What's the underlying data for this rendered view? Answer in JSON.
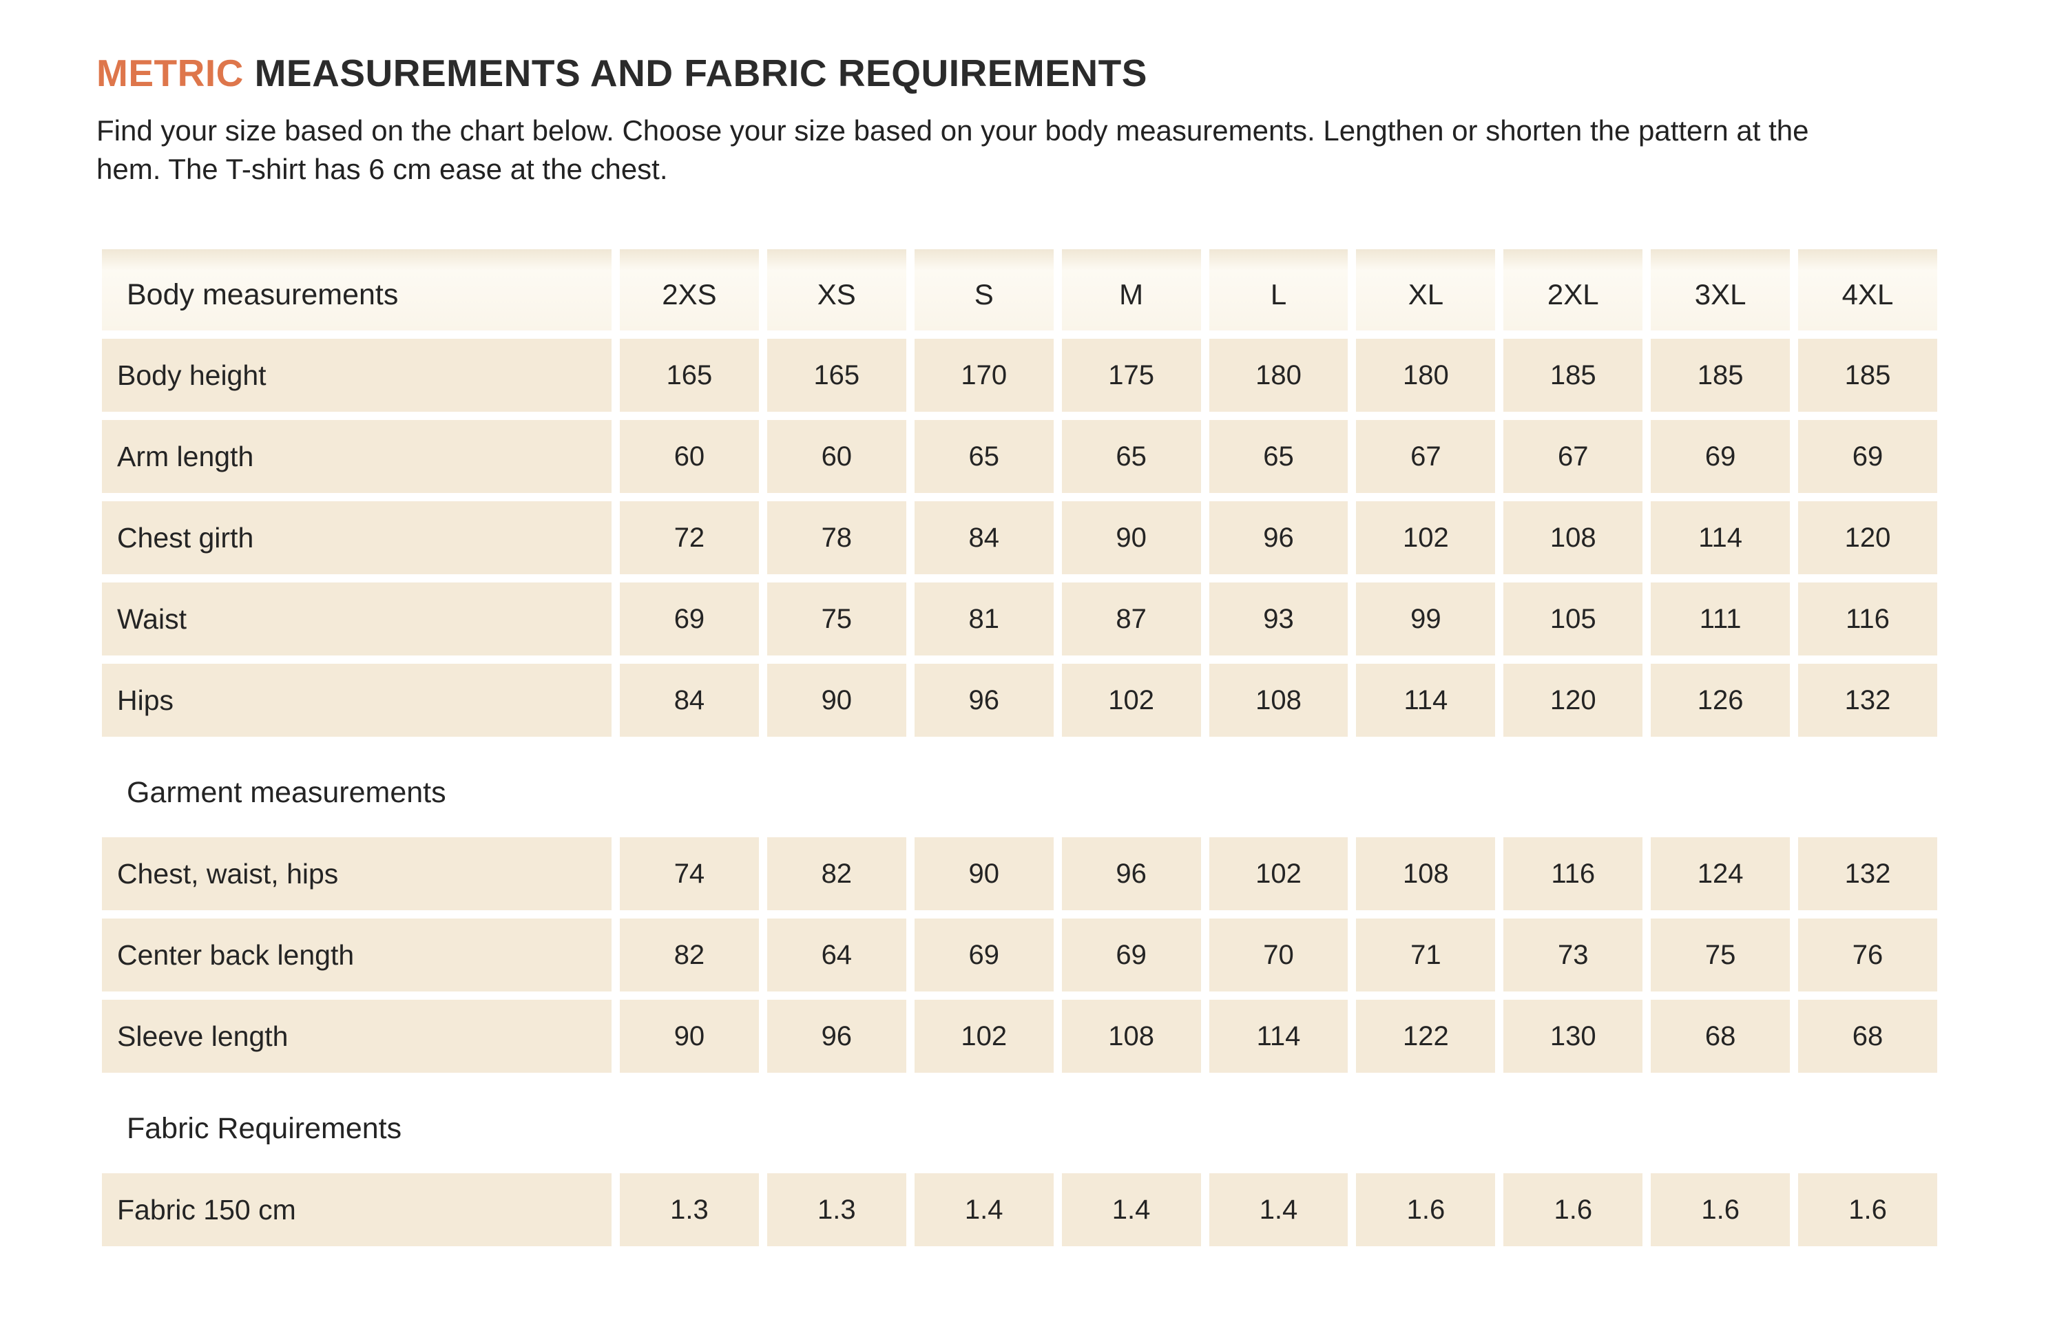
{
  "colors": {
    "accent": "#de764b",
    "cell_background": "#f4ead8",
    "text": "#242424",
    "page_background": "#ffffff"
  },
  "header": {
    "title_highlight": "METRIC",
    "title_rest": " MEASUREMENTS AND FABRIC REQUIREMENTS",
    "subtitle_line1": "Find your size based on the chart below. Choose your size based on your body measurements.  Lengthen or shorten the pattern at the",
    "subtitle_line2": "hem. The T-shirt has 6 cm ease at the chest."
  },
  "table": {
    "sizes": [
      "2XS",
      "XS",
      "S",
      "M",
      "L",
      "XL",
      "2XL",
      "3XL",
      "4XL"
    ],
    "sections": [
      {
        "label": "Body measurements",
        "rows": [
          {
            "label": "Body height",
            "values": [
              "165",
              "165",
              "170",
              "175",
              "180",
              "180",
              "185",
              "185",
              "185"
            ]
          },
          {
            "label": "Arm length",
            "values": [
              "60",
              "60",
              "65",
              "65",
              "65",
              "67",
              "67",
              "69",
              "69"
            ]
          },
          {
            "label": "Chest girth",
            "values": [
              "72",
              "78",
              "84",
              "90",
              "96",
              "102",
              "108",
              "114",
              "120"
            ]
          },
          {
            "label": "Waist",
            "values": [
              "69",
              "75",
              "81",
              "87",
              "93",
              "99",
              "105",
              "111",
              "116"
            ]
          },
          {
            "label": "Hips",
            "values": [
              "84",
              "90",
              "96",
              "102",
              "108",
              "114",
              "120",
              "126",
              "132"
            ]
          }
        ]
      },
      {
        "label": "Garment measurements",
        "rows": [
          {
            "label": "Chest, waist, hips",
            "values": [
              "74",
              "82",
              "90",
              "96",
              "102",
              "108",
              "116",
              "124",
              "132"
            ]
          },
          {
            "label": "Center back length",
            "values": [
              "82",
              "64",
              "69",
              "69",
              "70",
              "71",
              "73",
              "75",
              "76"
            ]
          },
          {
            "label": "Sleeve length",
            "values": [
              "90",
              "96",
              "102",
              "108",
              "114",
              "122",
              "130",
              "68",
              "68"
            ]
          }
        ]
      },
      {
        "label": "Fabric Requirements",
        "rows": [
          {
            "label": "Fabric 150 cm",
            "values": [
              "1.3",
              "1.3",
              "1.4",
              "1.4",
              "1.4",
              "1.6",
              "1.6",
              "1.6",
              "1.6"
            ]
          }
        ]
      }
    ]
  }
}
